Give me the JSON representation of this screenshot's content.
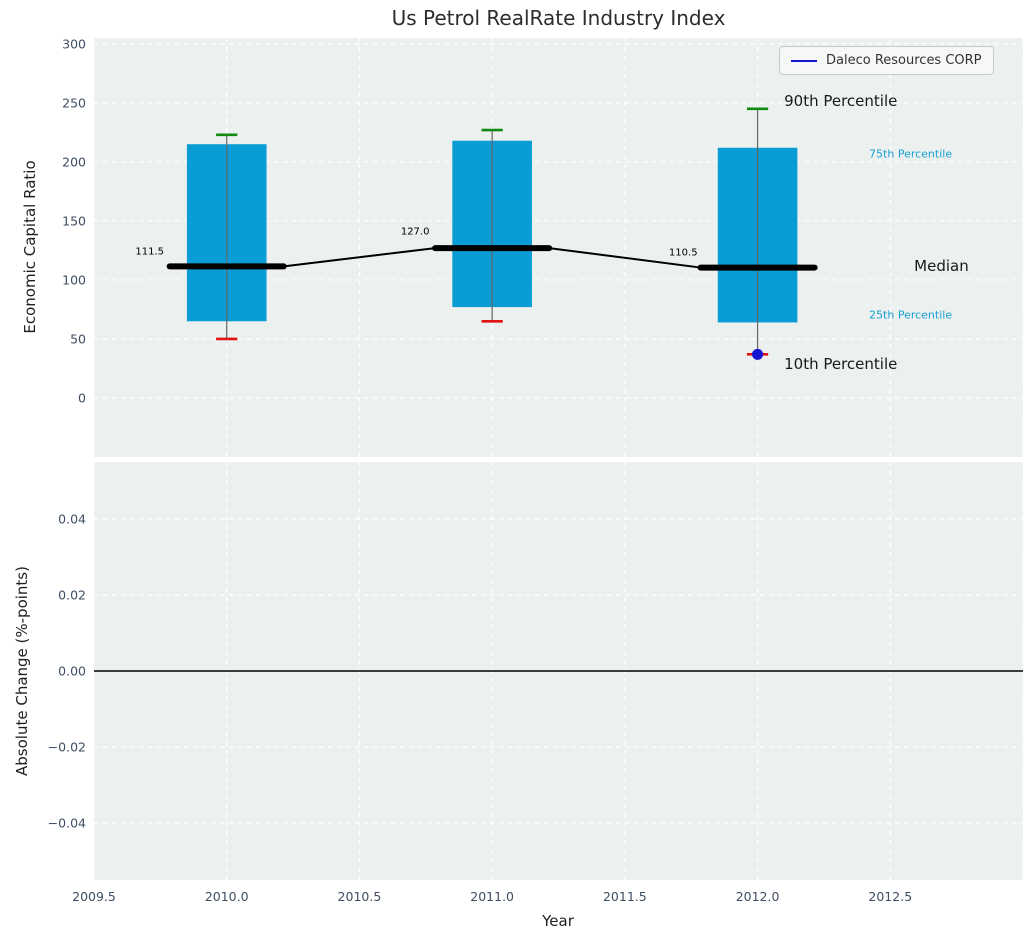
{
  "figure": {
    "title": "Us Petrol RealRate Industry Index"
  },
  "colors": {
    "axes_bg": "#ecf0ef",
    "grid": "#ffffff",
    "box_fill": "#0a9cd4",
    "whisker": "#666666",
    "cap_high": "#108a10",
    "cap_low": "#e01212",
    "median_line": "#000000",
    "company_blue": "#1414d2",
    "tick_label": "#3f4e63",
    "text_dark": "#1a1a1a",
    "cyan_label": "#189fd2",
    "zero_line": "#000000"
  },
  "chart_data": [
    {
      "type": "boxplot",
      "title": "Us Petrol RealRate Industry Index",
      "ylabel": "Economic Capital Ratio",
      "xlim": [
        2009.5,
        2013.0
      ],
      "ylim": [
        -50,
        305
      ],
      "yticks": [
        0,
        50,
        100,
        150,
        200,
        250,
        300
      ],
      "yticklabels": [
        "0",
        "50",
        "100",
        "150",
        "200",
        "250",
        "300"
      ],
      "xgrid_at": [
        2009.5,
        2010.0,
        2010.5,
        2011.0,
        2011.5,
        2012.0,
        2012.5,
        2013.0
      ],
      "grid": true,
      "legend": {
        "label": "Daleco Resources CORP",
        "position": "upper right"
      },
      "boxes": [
        {
          "year": 2010,
          "p10": 50,
          "p25": 65,
          "median": 111.5,
          "p75": 215,
          "p90": 223
        },
        {
          "year": 2011,
          "p10": 65,
          "p25": 77,
          "median": 127.0,
          "p75": 218,
          "p90": 227
        },
        {
          "year": 2012,
          "p10": 37,
          "p25": 64,
          "median": 110.5,
          "p75": 212,
          "p90": 245
        }
      ],
      "median_trend": {
        "years": [
          2010,
          2011,
          2012
        ],
        "values": [
          111.5,
          127.0,
          110.5
        ]
      },
      "company_point": {
        "series": "Daleco Resources CORP",
        "year": 2012,
        "value": 37
      },
      "annotations": [
        {
          "text": "111.5",
          "x": 2009.71,
          "y": 124,
          "size": 10,
          "color": "#000000",
          "ha": "center",
          "name": "median-value-2010"
        },
        {
          "text": "127.0",
          "x": 2010.71,
          "y": 141,
          "size": 10,
          "color": "#000000",
          "ha": "center",
          "name": "median-value-2011"
        },
        {
          "text": "110.5",
          "x": 2011.72,
          "y": 123,
          "size": 10,
          "color": "#000000",
          "ha": "center",
          "name": "median-value-2012"
        },
        {
          "text": "90th Percentile",
          "x": 2012.1,
          "y": 252,
          "size": 15,
          "color": "#1a1a1a",
          "ha": "left",
          "name": "label-90th-percentile"
        },
        {
          "text": "75th Percentile",
          "x": 2012.42,
          "y": 207,
          "size": 11,
          "color": "#189fd2",
          "ha": "left",
          "name": "label-75th-percentile"
        },
        {
          "text": "Median",
          "x": 2012.59,
          "y": 112,
          "size": 15,
          "color": "#1a1a1a",
          "ha": "left",
          "name": "label-median"
        },
        {
          "text": "25th Percentile",
          "x": 2012.42,
          "y": 70,
          "size": 11,
          "color": "#189fd2",
          "ha": "left",
          "name": "label-25th-percentile"
        },
        {
          "text": "10th Percentile",
          "x": 2012.1,
          "y": 29,
          "size": 15,
          "color": "#1a1a1a",
          "ha": "left",
          "name": "label-10th-percentile"
        }
      ]
    },
    {
      "type": "line",
      "ylabel": "Absolute Change (%-points)",
      "xlabel": "Year",
      "xlim": [
        2009.5,
        2013.0
      ],
      "ylim": [
        -0.055,
        0.055
      ],
      "xticks": [
        2009.5,
        2010.0,
        2010.5,
        2011.0,
        2011.5,
        2012.0,
        2012.5
      ],
      "xticklabels": [
        "2009.5",
        "2010.0",
        "2010.5",
        "2011.0",
        "2011.5",
        "2012.0",
        "2012.5"
      ],
      "xgrid_at": [
        2009.5,
        2010.0,
        2010.5,
        2011.0,
        2011.5,
        2012.0,
        2012.5,
        2013.0
      ],
      "yticks": [
        0.04,
        0.02,
        0.0,
        -0.02,
        -0.04
      ],
      "yticklabels": [
        "0.04",
        "0.02",
        "0.00",
        "−0.02",
        "−0.04"
      ],
      "grid": true,
      "zero_line": 0.0,
      "series": []
    }
  ]
}
